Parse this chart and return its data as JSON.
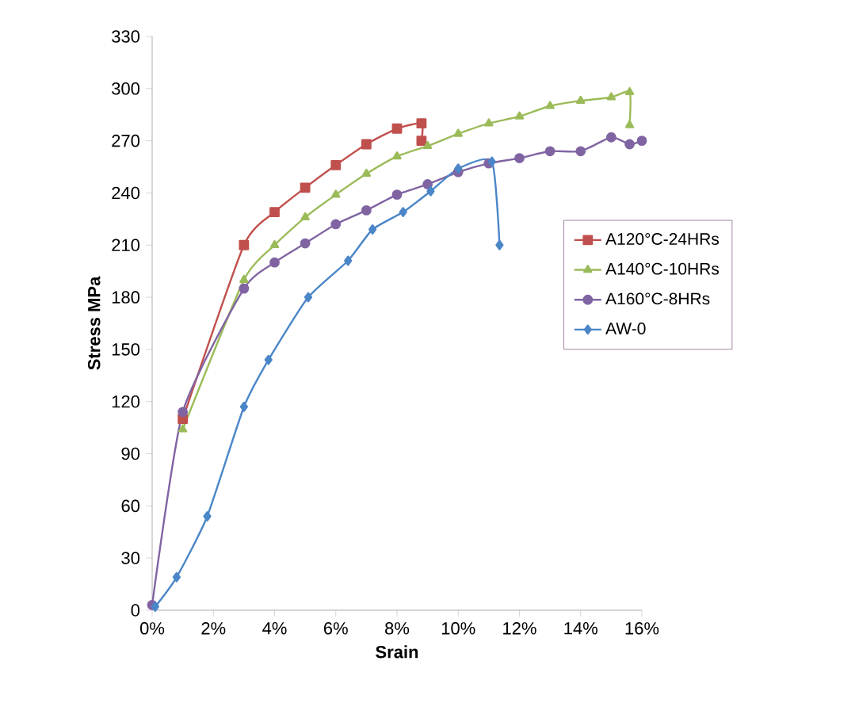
{
  "chart_data": {
    "type": "line",
    "xlabel": "Srain",
    "ylabel": "Stress MPa",
    "xlim": [
      0,
      16
    ],
    "ylim": [
      0,
      330
    ],
    "xticks": [
      {
        "value": 0,
        "label": "0%"
      },
      {
        "value": 2,
        "label": "2%"
      },
      {
        "value": 4,
        "label": "4%"
      },
      {
        "value": 6,
        "label": "6%"
      },
      {
        "value": 8,
        "label": "8%"
      },
      {
        "value": 10,
        "label": "10%"
      },
      {
        "value": 12,
        "label": "12%"
      },
      {
        "value": 14,
        "label": "14%"
      },
      {
        "value": 16,
        "label": "16%"
      }
    ],
    "yticks": [
      0,
      30,
      60,
      90,
      120,
      150,
      180,
      210,
      240,
      270,
      300,
      330
    ],
    "grid": false,
    "legend": "right",
    "line_style": "solid",
    "series": [
      {
        "name": "A120°C-24HRs",
        "color": "#c0504d",
        "marker": "square",
        "x": [
          1,
          3,
          4,
          5,
          6,
          7,
          8,
          8.8,
          8.8
        ],
        "values": [
          110,
          210,
          229,
          243,
          256,
          268,
          277,
          280,
          270
        ]
      },
      {
        "name": "A140°C-10HRs",
        "color": "#9bbb59",
        "marker": "triangle",
        "x": [
          1,
          3,
          4,
          5,
          6,
          7,
          8,
          9,
          10,
          11,
          12,
          13,
          14,
          15,
          15.6,
          15.6
        ],
        "values": [
          104,
          190,
          210,
          226,
          239,
          251,
          261,
          267,
          274,
          280,
          284,
          290,
          293,
          295,
          298,
          279
        ]
      },
      {
        "name": "A160°C-8HRs",
        "color": "#8064a2",
        "marker": "circle",
        "x": [
          0,
          1,
          3,
          4,
          5,
          6,
          7,
          8,
          9,
          10,
          11,
          12,
          13,
          14,
          15,
          15.6,
          16
        ],
        "values": [
          3,
          114,
          185,
          200,
          211,
          222,
          230,
          239,
          245,
          252,
          257,
          260,
          264,
          264,
          272,
          268,
          270
        ]
      },
      {
        "name": "AW-0",
        "color": "#4a86c8",
        "marker": "diamond",
        "x": [
          0.1,
          0.8,
          1.8,
          3,
          3.8,
          5.1,
          6.4,
          7.2,
          8.2,
          9.1,
          10,
          11.1,
          11.35
        ],
        "values": [
          2,
          19,
          54,
          117,
          144,
          180,
          201,
          219,
          229,
          241,
          254,
          258,
          210
        ]
      }
    ]
  }
}
